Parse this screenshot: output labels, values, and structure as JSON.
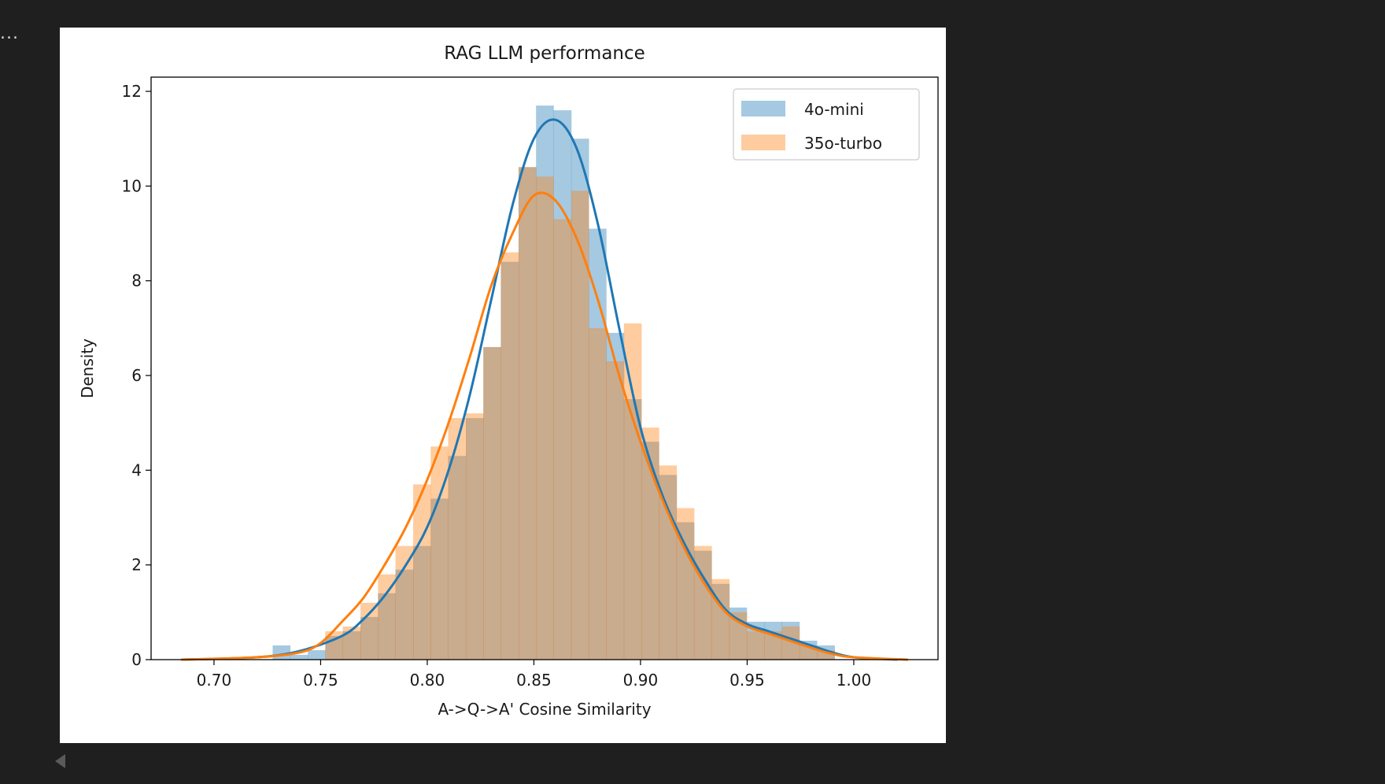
{
  "output": {
    "ellipsis": "..."
  },
  "chart_data": {
    "type": "histogram",
    "title": "RAG LLM performance",
    "xlabel": "A->Q->A' Cosine Similarity",
    "ylabel": "Density",
    "xlim": [
      0.6705,
      1.0395
    ],
    "ylim": [
      0,
      12.3
    ],
    "xticks": [
      0.7,
      0.75,
      0.8,
      0.85,
      0.9,
      0.95,
      1.0
    ],
    "xtick_labels": [
      "0.70",
      "0.75",
      "0.80",
      "0.85",
      "0.90",
      "0.95",
      "1.00"
    ],
    "yticks": [
      0,
      2,
      4,
      6,
      8,
      10,
      12
    ],
    "ytick_labels": [
      "0",
      "2",
      "4",
      "6",
      "8",
      "10",
      "12"
    ],
    "grid": false,
    "legend_position": "upper right",
    "series": [
      {
        "name": "4o-mini",
        "color": "#1f77b4",
        "bar_opacity": 0.4,
        "bins": [
          [
            0.7275,
            0.7357,
            0.3
          ],
          [
            0.7357,
            0.744,
            0.1
          ],
          [
            0.744,
            0.7522,
            0.2
          ],
          [
            0.7522,
            0.7604,
            0.5
          ],
          [
            0.7604,
            0.7687,
            0.6
          ],
          [
            0.7687,
            0.7769,
            0.9
          ],
          [
            0.7769,
            0.7851,
            1.4
          ],
          [
            0.7851,
            0.7934,
            1.9
          ],
          [
            0.7934,
            0.8016,
            2.4
          ],
          [
            0.8016,
            0.8098,
            3.4
          ],
          [
            0.8098,
            0.8181,
            4.3
          ],
          [
            0.8181,
            0.8263,
            5.1
          ],
          [
            0.8263,
            0.8345,
            6.6
          ],
          [
            0.8345,
            0.8428,
            8.4
          ],
          [
            0.8428,
            0.851,
            10.4
          ],
          [
            0.851,
            0.8592,
            11.7
          ],
          [
            0.8592,
            0.8675,
            11.6
          ],
          [
            0.8675,
            0.8757,
            11.0
          ],
          [
            0.8757,
            0.8839,
            9.1
          ],
          [
            0.8839,
            0.8922,
            6.9
          ],
          [
            0.8922,
            0.9004,
            5.5
          ],
          [
            0.9004,
            0.9086,
            4.6
          ],
          [
            0.9086,
            0.9169,
            3.9
          ],
          [
            0.9169,
            0.9251,
            2.9
          ],
          [
            0.9251,
            0.9333,
            2.3
          ],
          [
            0.9333,
            0.9416,
            1.6
          ],
          [
            0.9416,
            0.9498,
            1.1
          ],
          [
            0.9498,
            0.958,
            0.8
          ],
          [
            0.958,
            0.9663,
            0.8
          ],
          [
            0.9663,
            0.9745,
            0.8
          ],
          [
            0.9745,
            0.9827,
            0.4
          ],
          [
            0.9827,
            0.991,
            0.3
          ]
        ],
        "kde": [
          [
            0.685,
            0.0
          ],
          [
            0.72,
            0.05
          ],
          [
            0.74,
            0.18
          ],
          [
            0.76,
            0.5
          ],
          [
            0.77,
            0.85
          ],
          [
            0.78,
            1.35
          ],
          [
            0.79,
            2.0
          ],
          [
            0.8,
            2.8
          ],
          [
            0.81,
            4.0
          ],
          [
            0.82,
            5.6
          ],
          [
            0.83,
            7.6
          ],
          [
            0.84,
            9.6
          ],
          [
            0.85,
            11.0
          ],
          [
            0.86,
            11.4
          ],
          [
            0.87,
            10.8
          ],
          [
            0.88,
            9.2
          ],
          [
            0.89,
            7.0
          ],
          [
            0.9,
            4.9
          ],
          [
            0.91,
            3.5
          ],
          [
            0.92,
            2.5
          ],
          [
            0.93,
            1.7
          ],
          [
            0.94,
            1.05
          ],
          [
            0.95,
            0.75
          ],
          [
            0.96,
            0.6
          ],
          [
            0.97,
            0.45
          ],
          [
            0.98,
            0.3
          ],
          [
            0.99,
            0.15
          ],
          [
            1.0,
            0.05
          ],
          [
            1.02,
            0.0
          ]
        ]
      },
      {
        "name": "35o-turbo",
        "color": "#ff7f0e",
        "bar_opacity": 0.4,
        "bins": [
          [
            0.7522,
            0.7604,
            0.6
          ],
          [
            0.7604,
            0.7687,
            0.7
          ],
          [
            0.7687,
            0.7769,
            1.2
          ],
          [
            0.7769,
            0.7851,
            1.8
          ],
          [
            0.7851,
            0.7934,
            2.4
          ],
          [
            0.7934,
            0.8016,
            3.7
          ],
          [
            0.8016,
            0.8098,
            4.5
          ],
          [
            0.8098,
            0.8181,
            5.1
          ],
          [
            0.8181,
            0.8263,
            5.2
          ],
          [
            0.8263,
            0.8345,
            6.6
          ],
          [
            0.8345,
            0.8428,
            8.6
          ],
          [
            0.8428,
            0.851,
            10.4
          ],
          [
            0.851,
            0.8592,
            10.2
          ],
          [
            0.8592,
            0.8675,
            9.3
          ],
          [
            0.8675,
            0.8757,
            9.9
          ],
          [
            0.8757,
            0.8839,
            7.0
          ],
          [
            0.8839,
            0.8922,
            6.3
          ],
          [
            0.8922,
            0.9004,
            7.1
          ],
          [
            0.9004,
            0.9086,
            4.9
          ],
          [
            0.9086,
            0.9169,
            4.1
          ],
          [
            0.9169,
            0.9251,
            3.2
          ],
          [
            0.9251,
            0.9333,
            2.4
          ],
          [
            0.9333,
            0.9416,
            1.7
          ],
          [
            0.9416,
            0.9498,
            1.0
          ],
          [
            0.9498,
            0.958,
            0.6
          ],
          [
            0.958,
            0.9663,
            0.6
          ],
          [
            0.9663,
            0.9745,
            0.7
          ],
          [
            0.9745,
            0.9827,
            0.3
          ],
          [
            0.9827,
            0.991,
            0.2
          ]
        ],
        "kde": [
          [
            0.685,
            0.0
          ],
          [
            0.72,
            0.05
          ],
          [
            0.74,
            0.15
          ],
          [
            0.75,
            0.35
          ],
          [
            0.76,
            0.8
          ],
          [
            0.77,
            1.3
          ],
          [
            0.78,
            2.0
          ],
          [
            0.79,
            2.8
          ],
          [
            0.8,
            3.8
          ],
          [
            0.81,
            5.0
          ],
          [
            0.82,
            6.4
          ],
          [
            0.83,
            7.9
          ],
          [
            0.84,
            9.0
          ],
          [
            0.85,
            9.8
          ],
          [
            0.86,
            9.7
          ],
          [
            0.87,
            8.9
          ],
          [
            0.88,
            7.6
          ],
          [
            0.89,
            6.0
          ],
          [
            0.9,
            4.6
          ],
          [
            0.91,
            3.4
          ],
          [
            0.92,
            2.4
          ],
          [
            0.93,
            1.6
          ],
          [
            0.94,
            1.0
          ],
          [
            0.95,
            0.7
          ],
          [
            0.96,
            0.55
          ],
          [
            0.97,
            0.4
          ],
          [
            0.98,
            0.25
          ],
          [
            0.99,
            0.12
          ],
          [
            1.0,
            0.05
          ],
          [
            1.025,
            0.0
          ]
        ]
      }
    ]
  }
}
